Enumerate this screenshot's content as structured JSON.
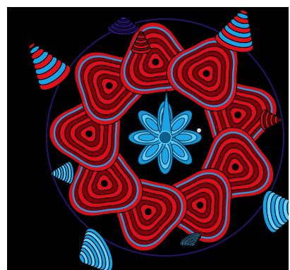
{
  "image": {
    "background_color": "#000000",
    "frame_color": "#ffffff",
    "palette": {
      "red": "#e0101c",
      "dark_red": "#7a0008",
      "blue": "#1aa2e6",
      "light_blue": "#5fd0ff",
      "violet": "#3a1a9a",
      "white_highlight": "#ffffff"
    }
  }
}
